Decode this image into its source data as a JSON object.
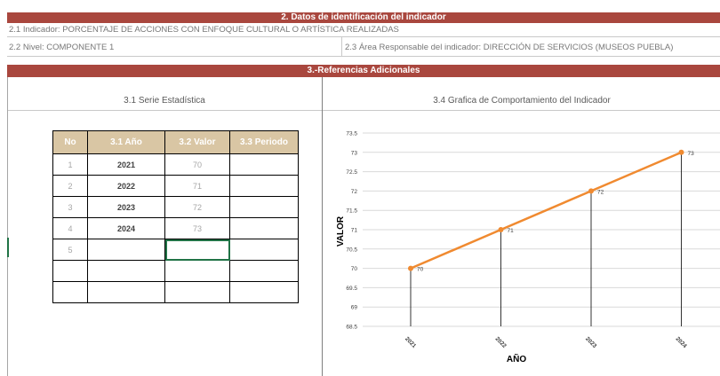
{
  "section2": {
    "title": "2. Datos de identificación del indicador",
    "indicador": "2.1 Indicador: PORCENTAJE DE ACCIONES CON ENFOQUE CULTURAL O ARTÍSTICA REALIZADAS",
    "nivel": "2.2 Nivel: COMPONENTE 1",
    "area": "2.3 Área Responsable del indicador:  DIRECCIÓN  DE SERVICIOS (MUSEOS PUEBLA)"
  },
  "section3": {
    "title": "3.-Referencias Adicionales",
    "serie_title": "3.1 Serie Estadística",
    "grafica_title": "3.4 Grafica de Comportamiento del Indicador"
  },
  "table": {
    "headers": [
      "No",
      "3.1 Año",
      "3.2  Valor",
      "3.3 Periodo"
    ],
    "rows": [
      [
        "1",
        "2021",
        "70",
        ""
      ],
      [
        "2",
        "2022",
        "71",
        ""
      ],
      [
        "3",
        "2023",
        "72",
        ""
      ],
      [
        "4",
        "2024",
        "73",
        ""
      ],
      [
        "5",
        "",
        "",
        ""
      ],
      [
        "",
        "",
        "",
        ""
      ],
      [
        "",
        "",
        "",
        ""
      ]
    ]
  },
  "chart_data": {
    "type": "line",
    "categories": [
      "2021",
      "2022",
      "2023",
      "2024"
    ],
    "series": [
      {
        "values": [
          70,
          71,
          72,
          73
        ]
      }
    ],
    "data_labels": [
      "70",
      "71",
      "72",
      "73"
    ],
    "xlabel": "AÑO",
    "ylabel": "VALOR",
    "ylim": [
      68.5,
      73.5
    ],
    "yticks": [
      "73.5",
      "73",
      "72.5",
      "72",
      "71.5",
      "71",
      "70.5",
      "70",
      "69.5",
      "69",
      "68.5"
    ],
    "grid": true,
    "drop_lines": true,
    "legend": "none",
    "colors": {
      "line": "#f08a30",
      "marker": "#f08a30",
      "drop_line": "#000000",
      "grid": "#d9d9d9"
    }
  }
}
